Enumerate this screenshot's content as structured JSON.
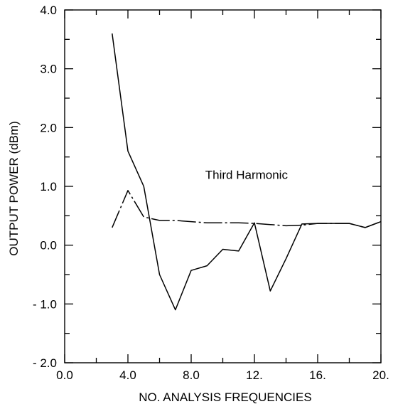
{
  "chart_data": {
    "type": "line",
    "title": "",
    "xlabel": "NO. ANALYSIS FREQUENCIES",
    "ylabel": "OUTPUT POWER (dBm)",
    "xlim": [
      0,
      20
    ],
    "ylim": [
      -2,
      4
    ],
    "x_ticks": [
      0,
      4,
      8,
      12,
      16,
      20
    ],
    "x_tick_labels": [
      "0.0",
      "4.0",
      "8.0",
      "12.",
      "16.",
      "20."
    ],
    "y_ticks": [
      4,
      3,
      2,
      1,
      0,
      -1,
      -2
    ],
    "y_tick_labels": [
      "4.0",
      "3.0",
      "2.0",
      "1.0",
      "0.0",
      "- 1.0",
      "- 2.0"
    ],
    "grid": false,
    "legend": "none",
    "annotations": [
      {
        "text": "Third  Harmonic",
        "x": 11.5,
        "y": 1.13
      }
    ],
    "series": [
      {
        "style": "solid",
        "x": [
          3,
          4,
          5,
          6,
          7,
          8,
          9,
          10,
          11,
          12,
          13,
          14,
          15,
          16,
          17,
          18,
          19,
          20
        ],
        "y": [
          3.6,
          1.6,
          1.0,
          -0.5,
          -1.1,
          -0.43,
          -0.35,
          -0.07,
          -0.1,
          0.38,
          -0.78,
          -0.23,
          0.36,
          0.37,
          0.37,
          0.37,
          0.3,
          0.4
        ]
      },
      {
        "style": "dashed",
        "x": [
          3,
          4,
          5,
          6,
          7,
          8,
          9,
          10,
          11,
          12,
          13,
          14,
          15,
          16,
          17,
          18,
          19,
          20
        ],
        "y": [
          0.3,
          0.93,
          0.48,
          0.42,
          0.42,
          0.4,
          0.38,
          0.38,
          0.38,
          0.37,
          0.35,
          0.33,
          0.34,
          0.37,
          0.37,
          0.37,
          0.3,
          0.4
        ]
      }
    ]
  }
}
